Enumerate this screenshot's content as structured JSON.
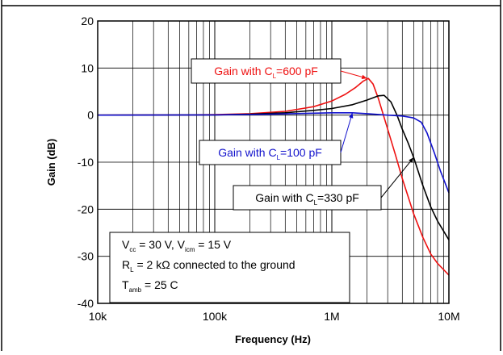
{
  "chart_data": {
    "type": "line",
    "title": "",
    "xlabel": "Frequency (Hz)",
    "ylabel": "Gain (dB)",
    "xscale": "log",
    "xlim": [
      10000,
      10000000
    ],
    "ylim": [
      -40,
      20
    ],
    "grid": true,
    "x_tick_labels": [
      "10k",
      "100k",
      "1M",
      "10M"
    ],
    "y_tick_labels": [
      "20",
      "10",
      "0",
      "-10",
      "-20",
      "-30",
      "-40"
    ],
    "colors": {
      "cl600": "#ee1111",
      "cl330": "#000000",
      "cl100": "#1111cc"
    },
    "series": [
      {
        "key": "cl600",
        "x": [
          10000,
          50000,
          100000,
          200000,
          400000,
          700000,
          1000000,
          1300000,
          1600000,
          1850000,
          2050000,
          2250000,
          2500000,
          3000000,
          3500000,
          4000000,
          5000000,
          6000000,
          7000000,
          8000000,
          10000000
        ],
        "values": [
          0,
          0.05,
          0.1,
          0.3,
          0.8,
          1.8,
          3.0,
          4.4,
          5.9,
          7.2,
          7.8,
          6.6,
          3.5,
          -3.0,
          -8.5,
          -13.5,
          -21,
          -26,
          -29.5,
          -31.5,
          -34
        ]
      },
      {
        "key": "cl330",
        "x": [
          10000,
          100000,
          200000,
          400000,
          700000,
          1000000,
          1500000,
          2000000,
          2500000,
          2800000,
          3200000,
          3600000,
          4000000,
          4500000,
          5000000,
          6000000,
          7000000,
          8000000,
          10000000
        ],
        "values": [
          0,
          0.05,
          0.2,
          0.5,
          1.0,
          1.4,
          2.2,
          3.2,
          4.1,
          4.2,
          2.8,
          0.0,
          -3.0,
          -6.0,
          -9.0,
          -15,
          -19.5,
          -22.5,
          -26.5
        ]
      },
      {
        "key": "cl100",
        "x": [
          10000,
          100000,
          300000,
          700000,
          1000000,
          1500000,
          2000000,
          3000000,
          4000000,
          5000000,
          5800000,
          6500000,
          7500000,
          8500000,
          10000000
        ],
        "values": [
          0,
          0.05,
          0.2,
          0.4,
          0.5,
          0.5,
          0.3,
          0.0,
          -0.2,
          -0.6,
          -1.5,
          -3.8,
          -8.0,
          -12.0,
          -16.5
        ]
      }
    ],
    "annotations": [
      {
        "pre": "Gain with C",
        "sub": "L",
        "post": "=600 pF",
        "series": "cl600",
        "arrow_to": [
          2000000,
          7.8
        ]
      },
      {
        "pre": "Gain with C",
        "sub": "L",
        "post": "=100 pF",
        "series": "cl100",
        "arrow_to": [
          1500000,
          0.5
        ]
      },
      {
        "pre": "Gain with C",
        "sub": "L",
        "post": "=330 pF",
        "series": "cl330",
        "arrow_to": [
          5000000,
          -9.0
        ]
      }
    ],
    "conditions": [
      {
        "parts": [
          [
            "V",
            "n"
          ],
          [
            "cc",
            "s"
          ],
          [
            " = 30 V, V",
            "n"
          ],
          [
            "icm",
            "s"
          ],
          [
            " = 15 V",
            "n"
          ]
        ]
      },
      {
        "parts": [
          [
            "R",
            "n"
          ],
          [
            "L",
            "s"
          ],
          [
            " = 2 kΩ connected to the ground",
            "n"
          ]
        ]
      },
      {
        "parts": [
          [
            "T",
            "n"
          ],
          [
            "amb",
            "s"
          ],
          [
            " = 25  C",
            "n"
          ]
        ]
      }
    ]
  }
}
